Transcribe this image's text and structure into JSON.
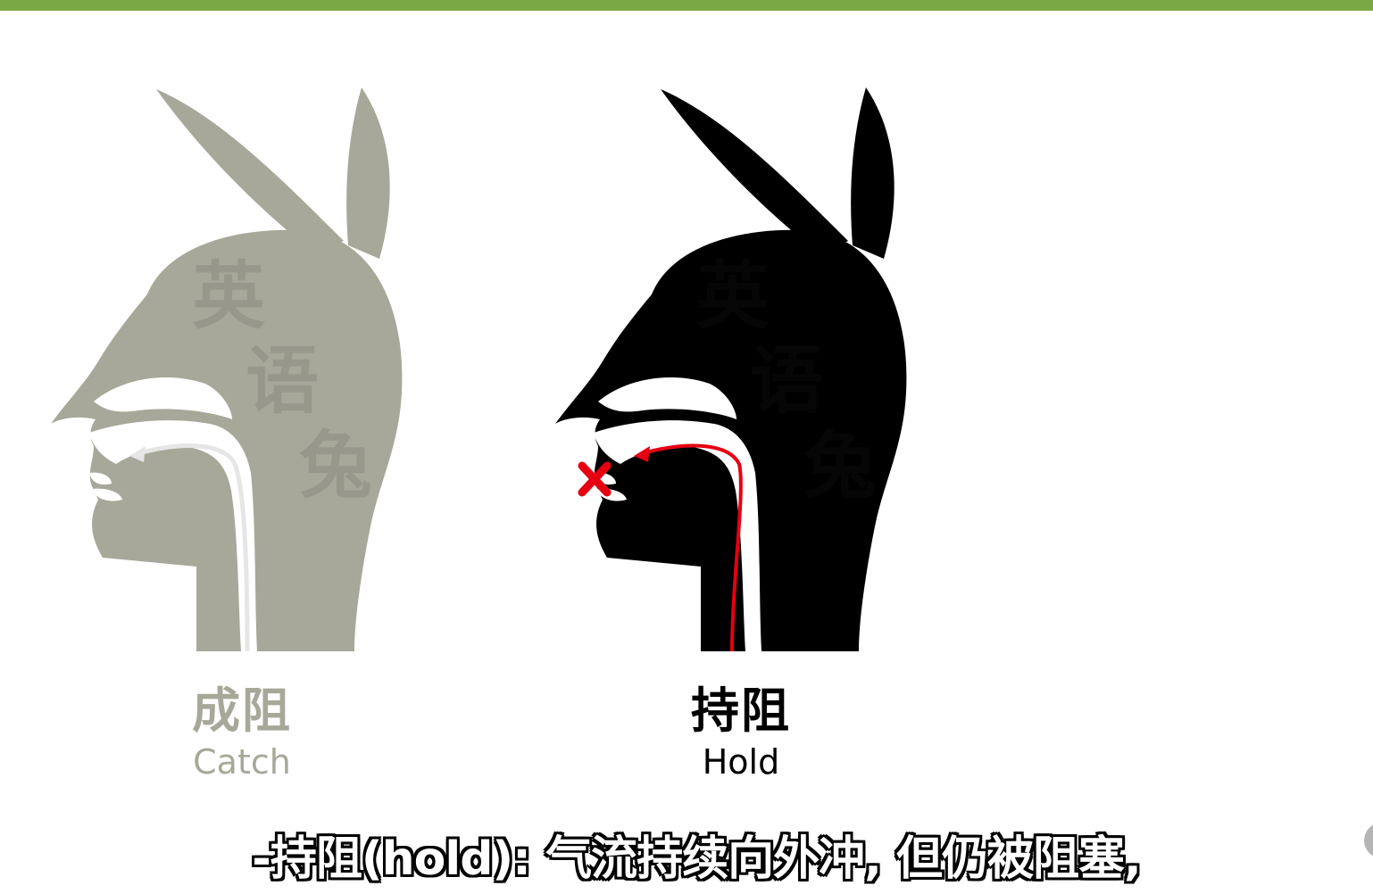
{
  "colors": {
    "top_bar": "#7aa843",
    "catch_figure": "#a8a89a",
    "catch_label": "#a8a89a",
    "hold_figure": "#000000",
    "hold_label": "#000000",
    "airflow_hold": "#e60012",
    "airflow_catch": "#e6e6e6",
    "watermark": "#2e2e2e"
  },
  "watermark": [
    "英",
    "语",
    "兔"
  ],
  "figures": [
    {
      "label_cn": "成阻",
      "label_en": "Catch"
    },
    {
      "label_cn": "持阻",
      "label_en": "Hold"
    }
  ],
  "subtitle": "-持阻(hold): 气流持续向外冲, 但仍被阻塞,"
}
